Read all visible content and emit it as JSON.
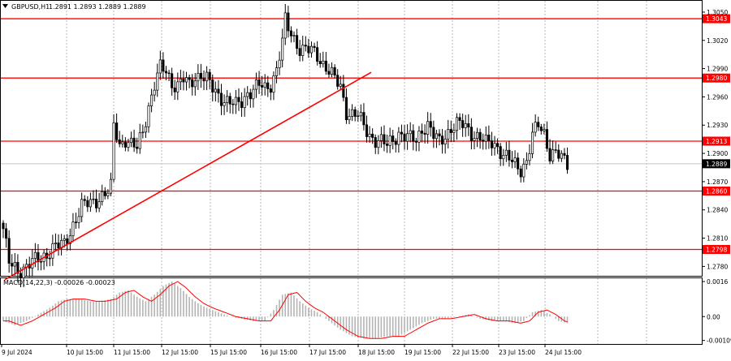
{
  "header": {
    "symbol": "GBPUSD,H1",
    "ohlc": "1.2891 1.2893 1.2889 1.2889"
  },
  "colors": {
    "level_line": "#ff0000",
    "trendline": "#ff0000",
    "candle": "#000000",
    "grid": "#9a9a9a",
    "macd_hist": "#b4b4b4",
    "macd_signal": "#ff0000",
    "current_price_bg": "#000000"
  },
  "chart_data": [
    {
      "type": "candlestick",
      "title": "GBPUSD,H1",
      "ohlc_last": {
        "open": 1.2891,
        "high": 1.2893,
        "low": 1.2889,
        "close": 1.2889
      },
      "ylim": [
        1.277,
        1.3062
      ],
      "y_ticks": [
        1.305,
        1.302,
        1.299,
        1.296,
        1.293,
        1.29,
        1.287,
        1.284,
        1.281,
        1.278
      ],
      "x_ticks": [
        "9 Jul 2024",
        "10 Jul 15:00",
        "11 Jul 15:00",
        "12 Jul 15:00",
        "15 Jul 15:00",
        "16 Jul 15:00",
        "17 Jul 15:00",
        "18 Jul 15:00",
        "19 Jul 15:00",
        "22 Jul 15:00",
        "23 Jul 15:00",
        "24 Jul 15:00"
      ],
      "horizontal_levels": [
        1.3043,
        1.298,
        1.2913,
        1.286,
        1.2798
      ],
      "current_price": 1.2889,
      "trendline": {
        "start": [
          "9 Jul 2024",
          1.2766
        ],
        "end": [
          "18 Jul 15:00",
          1.2986
        ]
      },
      "close_path": [
        [
          0,
          1.282
        ],
        [
          2,
          1.2783
        ],
        [
          5,
          1.2775
        ],
        [
          9,
          1.2783
        ],
        [
          13,
          1.2788
        ],
        [
          17,
          1.28
        ],
        [
          21,
          1.2803
        ],
        [
          24,
          1.2825
        ],
        [
          27,
          1.2843
        ],
        [
          30,
          1.2848
        ],
        [
          33,
          1.2853
        ],
        [
          36,
          1.2858
        ],
        [
          37,
          1.2863
        ],
        [
          38,
          1.293
        ],
        [
          39,
          1.2921
        ],
        [
          40,
          1.291
        ],
        [
          42,
          1.2915
        ],
        [
          44,
          1.2908
        ],
        [
          46,
          1.2905
        ],
        [
          48,
          1.2925
        ],
        [
          50,
          1.295
        ],
        [
          52,
          1.2972
        ],
        [
          54,
          1.299
        ],
        [
          56,
          1.2988
        ],
        [
          58,
          1.2975
        ],
        [
          60,
          1.2972
        ],
        [
          62,
          1.2978
        ],
        [
          64,
          1.2972
        ],
        [
          66,
          1.2982
        ],
        [
          68,
          1.2984
        ],
        [
          70,
          1.2978
        ],
        [
          72,
          1.2968
        ],
        [
          74,
          1.2962
        ],
        [
          76,
          1.2958
        ],
        [
          78,
          1.2954
        ],
        [
          80,
          1.295
        ],
        [
          82,
          1.2955
        ],
        [
          84,
          1.2965
        ],
        [
          86,
          1.2968
        ],
        [
          88,
          1.2972
        ],
        [
          90,
          1.2968
        ],
        [
          92,
          1.2974
        ],
        [
          94,
          1.299
        ],
        [
          96,
          1.3018
        ],
        [
          97,
          1.304
        ],
        [
          98,
          1.3032
        ],
        [
          100,
          1.3022
        ],
        [
          102,
          1.3012
        ],
        [
          104,
          1.301
        ],
        [
          106,
          1.3008
        ],
        [
          108,
          1.3004
        ],
        [
          110,
          1.2996
        ],
        [
          112,
          1.2988
        ],
        [
          114,
          1.2978
        ],
        [
          116,
          1.297
        ],
        [
          118,
          1.2945
        ],
        [
          120,
          1.2942
        ],
        [
          122,
          1.294
        ],
        [
          124,
          1.2928
        ],
        [
          126,
          1.292
        ],
        [
          128,
          1.2915
        ],
        [
          130,
          1.2912
        ],
        [
          132,
          1.2908
        ],
        [
          134,
          1.2915
        ],
        [
          136,
          1.2922
        ],
        [
          138,
          1.2918
        ],
        [
          140,
          1.2915
        ],
        [
          142,
          1.2914
        ],
        [
          144,
          1.2927
        ],
        [
          146,
          1.293
        ],
        [
          148,
          1.2918
        ],
        [
          150,
          1.2912
        ],
        [
          152,
          1.292
        ],
        [
          154,
          1.2927
        ],
        [
          156,
          1.293
        ],
        [
          158,
          1.293
        ],
        [
          160,
          1.2926
        ],
        [
          162,
          1.292
        ],
        [
          164,
          1.2916
        ],
        [
          166,
          1.291
        ],
        [
          168,
          1.2912
        ],
        [
          170,
          1.2908
        ],
        [
          172,
          1.2898
        ],
        [
          174,
          1.2893
        ],
        [
          176,
          1.2888
        ],
        [
          178,
          1.2884
        ],
        [
          180,
          1.2892
        ],
        [
          182,
          1.2918
        ],
        [
          184,
          1.293
        ],
        [
          186,
          1.2922
        ],
        [
          188,
          1.29
        ],
        [
          190,
          1.29
        ],
        [
          192,
          1.2894
        ],
        [
          194,
          1.2889
        ]
      ]
    },
    {
      "type": "bar",
      "title": "MACD(14,22,3) -0.00026 -0.00023",
      "ylim": [
        -0.00125,
        0.00175
      ],
      "y_ticks": [
        0.0016,
        0.0,
        -0.00109
      ],
      "y_tick_labels": [
        "0.0016",
        "0.00",
        "-0.00109"
      ],
      "histogram": [
        [
          0,
          -0.0002
        ],
        [
          4,
          -0.0004
        ],
        [
          8,
          -0.0002
        ],
        [
          12,
          0.0001
        ],
        [
          16,
          0.0004
        ],
        [
          19,
          0.0007
        ],
        [
          22,
          0.0008
        ],
        [
          26,
          0.0008
        ],
        [
          30,
          0.0007
        ],
        [
          33,
          0.0007
        ],
        [
          37,
          0.0008
        ],
        [
          40,
          0.0011
        ],
        [
          43,
          0.0012
        ],
        [
          46,
          0.0009
        ],
        [
          49,
          0.0007
        ],
        [
          52,
          0.001
        ],
        [
          55,
          0.0014
        ],
        [
          58,
          0.0016
        ],
        [
          61,
          0.0013
        ],
        [
          64,
          0.0009
        ],
        [
          67,
          0.0006
        ],
        [
          70,
          0.0004
        ],
        [
          74,
          0.0002
        ],
        [
          78,
          0.0
        ],
        [
          82,
          -0.0001
        ],
        [
          86,
          -0.0002
        ],
        [
          90,
          -0.0002
        ],
        [
          93,
          0.0003
        ],
        [
          96,
          0.001
        ],
        [
          99,
          0.0011
        ],
        [
          102,
          0.0007
        ],
        [
          105,
          0.0004
        ],
        [
          108,
          0.0002
        ],
        [
          112,
          -0.0002
        ],
        [
          116,
          -0.0006
        ],
        [
          120,
          -0.0009
        ],
        [
          124,
          -0.001
        ],
        [
          128,
          -0.001
        ],
        [
          132,
          -0.0009
        ],
        [
          136,
          -0.0009
        ],
        [
          140,
          -0.0006
        ],
        [
          144,
          -0.0003
        ],
        [
          148,
          -0.0001
        ],
        [
          152,
          -0.0001
        ],
        [
          156,
          0.0
        ],
        [
          160,
          0.0001
        ],
        [
          164,
          -0.0001
        ],
        [
          168,
          -0.0002
        ],
        [
          172,
          -0.0002
        ],
        [
          176,
          -0.0003
        ],
        [
          179,
          -0.0002
        ],
        [
          182,
          0.0002
        ],
        [
          185,
          0.0003
        ],
        [
          188,
          0.0001
        ],
        [
          191,
          -0.0002
        ],
        [
          194,
          -0.0003
        ]
      ]
    }
  ]
}
